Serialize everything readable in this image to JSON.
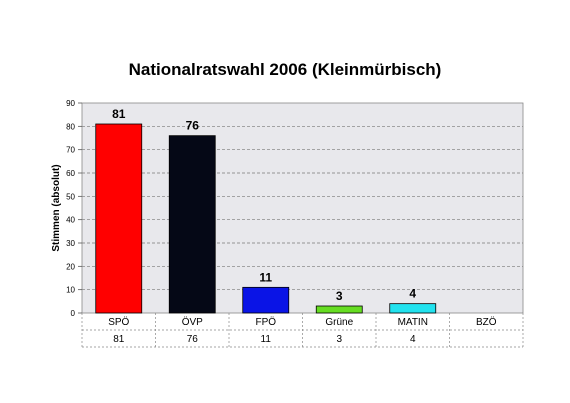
{
  "chart_data": {
    "type": "bar",
    "title": "Nationalratswahl 2006 (Kleinmürbisch)",
    "ylabel": "Stimmen (absolut)",
    "xlabel": "",
    "ylim": [
      0,
      90
    ],
    "yticks": [
      "0",
      "10",
      "20",
      "30",
      "40",
      "50",
      "60",
      "70",
      "80",
      "90"
    ],
    "grid": true,
    "categories": [
      "SPÖ",
      "ÖVP",
      "FPÖ",
      "Grüne",
      "MATIN",
      "BZÖ"
    ],
    "values": [
      81,
      76,
      11,
      3,
      4,
      0
    ],
    "data_labels": [
      "81",
      "76",
      "11",
      "3",
      "4",
      ""
    ],
    "table_values": [
      "81",
      "76",
      "11",
      "3",
      "4",
      ""
    ],
    "colors": [
      "#ff0000",
      "#050816",
      "#0a14e6",
      "#66dd22",
      "#22e2ee",
      "#cccccc"
    ],
    "plot_background": "#e8e8ec"
  }
}
